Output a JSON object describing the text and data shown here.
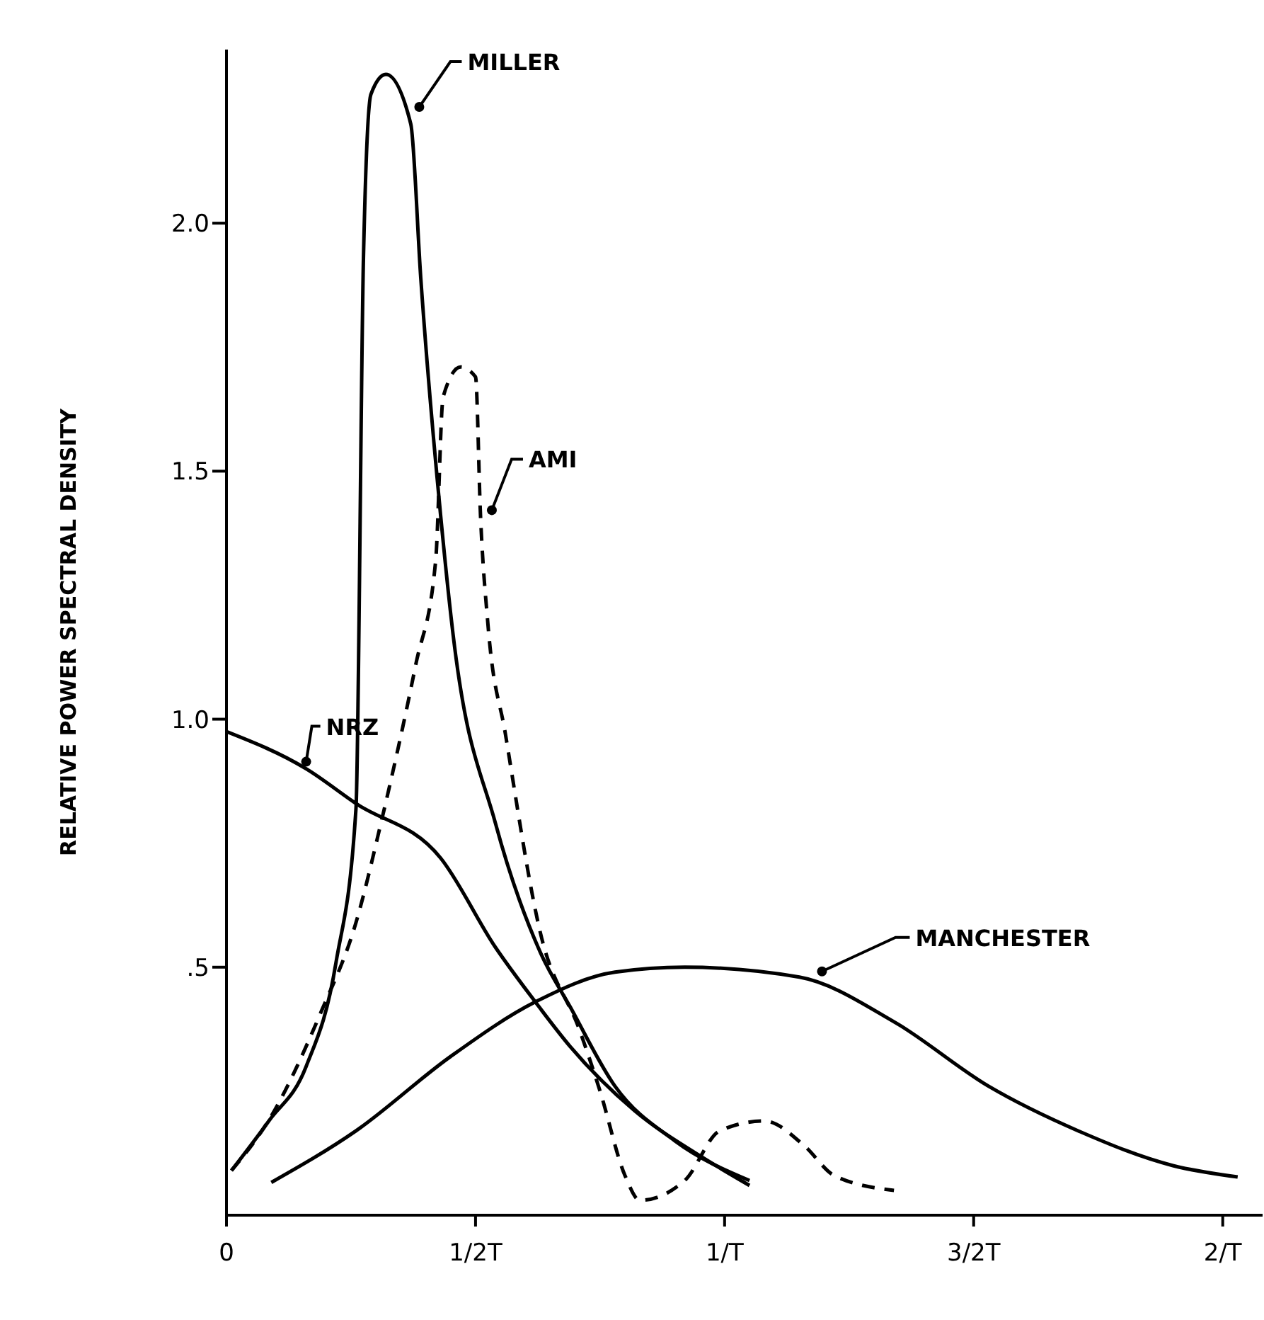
{
  "chart_data": {
    "type": "line",
    "ylabel": "RELATIVE POWER SPECTRAL DENSITY",
    "xlim": [
      0,
      2.08
    ],
    "ylim": [
      0,
      2.35
    ],
    "xticks": [
      0,
      {
        "value": 0.5,
        "label": "1/2T"
      },
      {
        "value": 1,
        "label": "1/T"
      },
      {
        "value": 1.5,
        "label": "3/2T"
      },
      {
        "value": 2,
        "label": "2/T"
      }
    ],
    "yticks": [
      {
        "value": 0.5,
        "label": ".5"
      },
      {
        "value": 1,
        "label": "1.0"
      },
      {
        "value": 1.5,
        "label": "1.5"
      },
      {
        "value": 2,
        "label": "2.0"
      }
    ],
    "grid": false,
    "legend": false,
    "marker": "none",
    "series": [
      {
        "name": "MILLER",
        "color": "#000000",
        "line_style": "solid",
        "x": [
          0.01,
          0.085,
          0.16,
          0.22,
          0.26,
          0.275,
          0.29,
          0.32,
          0.37,
          0.39,
          0.43,
          0.455,
          0.54,
          0.63,
          0.69,
          0.78,
          0.9,
          1.05
        ],
        "values": [
          0.09,
          0.19,
          0.3,
          0.51,
          0.82,
          1.93,
          2.26,
          2.3,
          2.2,
          1.89,
          1.41,
          1.17,
          0.79,
          0.53,
          0.42,
          0.26,
          0.15,
          0.07
        ]
      },
      {
        "name": "AMI",
        "color": "#000000",
        "line_style": "dashed",
        "x": [
          0.01,
          0.09,
          0.19,
          0.26,
          0.31,
          0.38,
          0.42,
          0.435,
          0.47,
          0.5,
          0.51,
          0.525,
          0.56,
          0.63,
          0.71,
          0.75,
          0.8,
          0.83,
          0.92,
          0.99,
          1.08,
          1.16,
          1.22,
          1.34
        ],
        "values": [
          0.09,
          0.2,
          0.41,
          0.59,
          0.79,
          1.11,
          1.32,
          1.65,
          1.71,
          1.69,
          1.41,
          1.19,
          0.97,
          0.57,
          0.37,
          0.25,
          0.08,
          0.03,
          0.07,
          0.17,
          0.19,
          0.14,
          0.08,
          0.05
        ]
      },
      {
        "name": "NRZ",
        "color": "#000000",
        "line_style": "solid",
        "x": [
          0,
          0.16,
          0.26,
          0.43,
          0.54,
          0.62,
          0.69,
          0.82,
          0.95,
          1.05
        ],
        "values": [
          0.975,
          0.9,
          0.83,
          0.72,
          0.54,
          0.43,
          0.34,
          0.21,
          0.12,
          0.06
        ]
      },
      {
        "name": "MANCHESTER",
        "color": "#000000",
        "line_style": "solid",
        "x": [
          0.09,
          0.26,
          0.45,
          0.62,
          0.78,
          0.92,
          1.15,
          1.34,
          1.53,
          1.71,
          1.9,
          2.03
        ],
        "values": [
          0.066,
          0.17,
          0.32,
          0.43,
          0.49,
          0.5,
          0.48,
          0.39,
          0.26,
          0.17,
          0.1,
          0.077
        ]
      }
    ]
  }
}
